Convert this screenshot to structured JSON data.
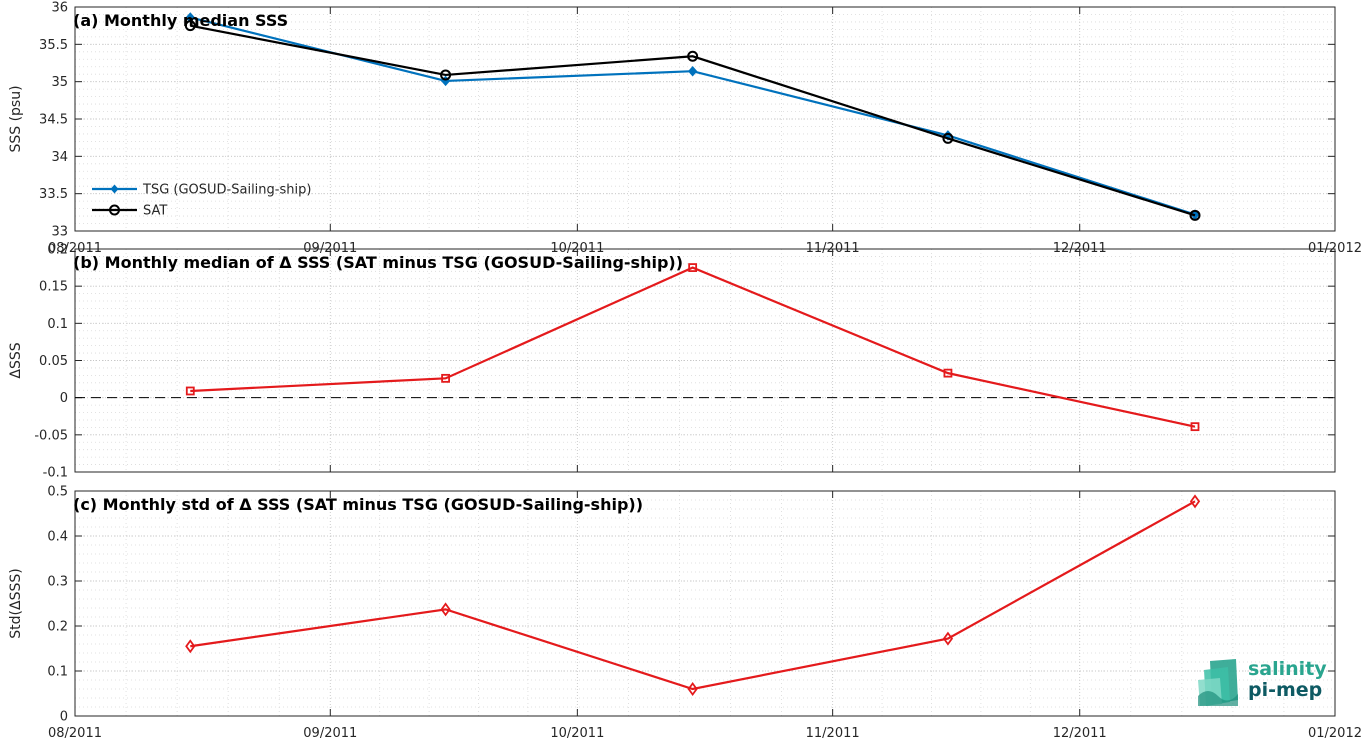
{
  "chart_data": [
    {
      "type": "line",
      "title": "(a) Monthly median SSS",
      "xlabel": "",
      "ylabel": "SSS (psu)",
      "x": [
        "2011-08-15",
        "2011-09-15",
        "2011-10-15",
        "2011-11-15",
        "2011-12-15"
      ],
      "xlim": [
        "2011-08-01",
        "2012-01-01"
      ],
      "xticks": [
        "08/2011",
        "09/2011",
        "10/2011",
        "11/2011",
        "12/2011",
        "01/2012"
      ],
      "ylim": [
        33,
        36
      ],
      "yticks": [
        "33",
        "33.5",
        "34",
        "34.5",
        "35",
        "35.5",
        "36"
      ],
      "grid": true,
      "legend_position": "bottom-left",
      "series": [
        {
          "name": "TSG (GOSUD-Sailing-ship)",
          "values": [
            35.86,
            35.01,
            35.14,
            34.28,
            33.22
          ],
          "color": "#0072bd",
          "marker": "diamond"
        },
        {
          "name": "SAT",
          "values": [
            35.75,
            35.09,
            35.34,
            34.24,
            33.21
          ],
          "color": "#000000",
          "marker": "circle"
        }
      ]
    },
    {
      "type": "line",
      "title": "(b) Monthly median of Δ SSS (SAT minus TSG (GOSUD-Sailing-ship))",
      "xlabel": "",
      "ylabel": "ΔSSS",
      "x": [
        "2011-08-15",
        "2011-09-15",
        "2011-10-15",
        "2011-11-15",
        "2011-12-15"
      ],
      "xlim": [
        "2011-08-01",
        "2012-01-01"
      ],
      "ylim": [
        -0.1,
        0.2
      ],
      "yticks": [
        "-0.1",
        "-0.05",
        "0",
        "0.05",
        "0.1",
        "0.15",
        "0.2"
      ],
      "zero_line": true,
      "grid": true,
      "series": [
        {
          "values": [
            0.009,
            0.026,
            0.175,
            0.033,
            -0.039
          ],
          "color": "#e41a1c",
          "marker": "square"
        }
      ]
    },
    {
      "type": "line",
      "title": "(c) Monthly std of Δ SSS (SAT minus TSG (GOSUD-Sailing-ship))",
      "xlabel": "",
      "ylabel": "Std(ΔSSS)",
      "x": [
        "2011-08-15",
        "2011-09-15",
        "2011-10-15",
        "2011-11-15",
        "2011-12-15"
      ],
      "xlim": [
        "2011-08-01",
        "2012-01-01"
      ],
      "xticks": [
        "08/2011",
        "09/2011",
        "10/2011",
        "11/2011",
        "12/2011",
        "01/2012"
      ],
      "ylim": [
        0,
        0.5
      ],
      "yticks": [
        "0",
        "0.1",
        "0.2",
        "0.3",
        "0.4",
        "0.5"
      ],
      "grid": true,
      "series": [
        {
          "values": [
            0.155,
            0.237,
            0.06,
            0.172,
            0.477
          ],
          "color": "#e41a1c",
          "marker": "diamond"
        }
      ]
    }
  ],
  "logo": {
    "line1": "salinity",
    "line2": "pi-mep",
    "icon": "wave-blocks-icon",
    "color1": "#2aa58f",
    "color2": "#0e5a63"
  }
}
